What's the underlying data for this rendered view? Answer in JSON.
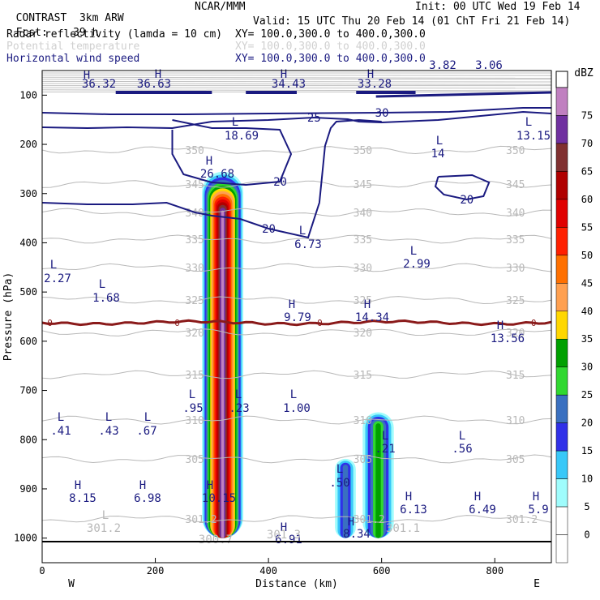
{
  "header": {
    "model": "CONTRAST",
    "model_res": "3km ARW",
    "org": "NCAR/MMM",
    "init": "Init: 00 UTC Wed 19 Feb 14",
    "fcst_label": "Fcst:",
    "fcst_value": "39 h",
    "valid": "Valid: 15 UTC Thu 20 Feb 14 (01 ChT Fri 21 Feb 14)",
    "fields": [
      {
        "name": "Radar reflectivity (lamda = 10 cm)",
        "xy": "XY= 100.0,300.0 to 400.0,300.0",
        "color": "#000000"
      },
      {
        "name": "Potential temperature",
        "xy": "XY= 100.0,300.0 to 400.0,300.0",
        "color": "#d0d0d0"
      },
      {
        "name": "Horizontal wind speed",
        "xy": "XY= 100.0,300.0 to 400.0,300.0",
        "color": "#1a1a80"
      }
    ]
  },
  "chart_data": {
    "type": "cross-section",
    "xlabel": "Distance (km)",
    "ylabel": "Pressure (hPa)",
    "xlim": [
      0,
      900
    ],
    "ylim": [
      1050,
      50
    ],
    "xticks": [
      0,
      200,
      400,
      600,
      800
    ],
    "yticks": [
      100,
      200,
      300,
      400,
      500,
      600,
      700,
      800,
      900,
      1000
    ],
    "x_end_labels": {
      "left": "W",
      "right": "E"
    },
    "colorbar": {
      "unit": "dBZ",
      "levels": [
        0,
        5,
        10,
        15,
        20,
        25,
        30,
        35,
        40,
        45,
        50,
        55,
        60,
        65,
        70,
        75
      ],
      "colors": [
        "#ffffff",
        "#9ffcfc",
        "#38c8f8",
        "#3030e8",
        "#3a70c0",
        "#30d830",
        "#00a000",
        "#ffd700",
        "#ffa050",
        "#ff7000",
        "#ff2000",
        "#e00000",
        "#b00000",
        "#803030",
        "#7030a0",
        "#c080c0"
      ]
    },
    "wind_contours": [
      {
        "value": 30,
        "pts": [
          [
            0,
            139
          ],
          [
            120,
            141
          ],
          [
            250,
            141
          ],
          [
            400,
            140
          ],
          [
            600,
            139
          ],
          [
            720,
            138
          ],
          [
            850,
            133
          ],
          [
            900,
            133
          ]
        ]
      },
      {
        "value": 25,
        "pts": [
          [
            0,
            157
          ],
          [
            80,
            158
          ],
          [
            150,
            157
          ],
          [
            230,
            158
          ],
          [
            300,
            150
          ],
          [
            400,
            148
          ],
          [
            480,
            145
          ],
          [
            540,
            147
          ],
          [
            560,
            150
          ],
          [
            600,
            151
          ],
          [
            700,
            148
          ],
          [
            850,
            138
          ],
          [
            900,
            140
          ]
        ]
      },
      {
        "value": 20,
        "pts": [
          [
            0,
            250
          ],
          [
            80,
            252
          ],
          [
            160,
            252
          ],
          [
            220,
            250
          ],
          [
            270,
            262
          ],
          [
            300,
            266
          ],
          [
            350,
            270
          ],
          [
            400,
            282
          ],
          [
            470,
            293
          ],
          [
            490,
            250
          ],
          [
            500,
            180
          ],
          [
            510,
            158
          ],
          [
            520,
            150
          ],
          [
            560,
            148
          ],
          [
            600,
            150
          ]
        ]
      },
      {
        "value": 20,
        "pts": [
          [
            230,
            148
          ],
          [
            300,
            158
          ],
          [
            360,
            158
          ],
          [
            420,
            160
          ],
          [
            440,
            190
          ],
          [
            420,
            224
          ],
          [
            360,
            228
          ],
          [
            300,
            225
          ],
          [
            250,
            215
          ],
          [
            230,
            190
          ],
          [
            230,
            160
          ]
        ]
      },
      {
        "value": 20,
        "pts": [
          [
            700,
            218
          ],
          [
            760,
            216
          ],
          [
            790,
            225
          ],
          [
            780,
            242
          ],
          [
            750,
            246
          ],
          [
            710,
            240
          ],
          [
            695,
            230
          ],
          [
            700,
            218
          ]
        ]
      }
    ],
    "theta_contours": [
      {
        "value": 350,
        "y": 185
      },
      {
        "value": 345,
        "y": 227
      },
      {
        "value": 340,
        "y": 262
      },
      {
        "value": 335,
        "y": 295
      },
      {
        "value": 330,
        "y": 330
      },
      {
        "value": 325,
        "y": 370
      },
      {
        "value": 320,
        "y": 410
      },
      {
        "value": 315,
        "y": 462
      },
      {
        "value": 310,
        "y": 518
      },
      {
        "value": 305,
        "y": 566
      },
      {
        "value": 301.2,
        "y": 640
      }
    ],
    "zero_line": {
      "value": 0,
      "y": 398
    },
    "reflectivity_cells": [
      {
        "x": 319,
        "top": 250,
        "bottom": 1000,
        "max_dbz": 75
      },
      {
        "x": 536,
        "top": 835,
        "bottom": 1000,
        "max_dbz": 20
      },
      {
        "x": 594,
        "top": 740,
        "bottom": 1000,
        "max_dbz": 30
      }
    ],
    "annotations": [
      {
        "text": "H",
        "x": 107,
        "y": 97,
        "color": "navy"
      },
      {
        "text": "36.32",
        "x": 122,
        "y": 108,
        "color": "navy"
      },
      {
        "text": "H",
        "x": 195,
        "y": 96,
        "color": "navy"
      },
      {
        "text": "36.63",
        "x": 190,
        "y": 108,
        "color": "navy"
      },
      {
        "text": "H",
        "x": 350,
        "y": 96,
        "color": "navy"
      },
      {
        "text": "34.43",
        "x": 356,
        "y": 108,
        "color": "navy"
      },
      {
        "text": "H",
        "x": 457,
        "y": 96,
        "color": "navy"
      },
      {
        "text": "33.28",
        "x": 462,
        "y": 108,
        "color": "navy"
      },
      {
        "text": "3.82",
        "x": 546,
        "y": 85,
        "color": "navy"
      },
      {
        "text": "3.06",
        "x": 603,
        "y": 85,
        "color": "navy"
      },
      {
        "text": "L",
        "x": 290,
        "y": 155,
        "color": "navy"
      },
      {
        "text": "18.69",
        "x": 298,
        "y": 172,
        "color": "navy"
      },
      {
        "text": "L",
        "x": 542,
        "y": 178,
        "color": "navy"
      },
      {
        "text": "14",
        "x": 540,
        "y": 194,
        "color": "navy"
      },
      {
        "text": "L",
        "x": 652,
        "y": 155,
        "color": "navy"
      },
      {
        "text": "13.15",
        "x": 658,
        "y": 172,
        "color": "navy"
      },
      {
        "text": "H",
        "x": 258,
        "y": 203,
        "color": "navy"
      },
      {
        "text": "26.68",
        "x": 268,
        "y": 219,
        "color": "navy"
      },
      {
        "text": "L",
        "x": 373,
        "y": 289,
        "color": "navy"
      },
      {
        "text": "6.73",
        "x": 380,
        "y": 306,
        "color": "navy"
      },
      {
        "text": "L",
        "x": 510,
        "y": 314,
        "color": "navy"
      },
      {
        "text": "2.99",
        "x": 514,
        "y": 330,
        "color": "navy"
      },
      {
        "text": "L",
        "x": 66,
        "y": 331,
        "color": "navy"
      },
      {
        "text": "2.27",
        "x": 71,
        "y": 348,
        "color": "navy"
      },
      {
        "text": "L",
        "x": 126,
        "y": 355,
        "color": "navy"
      },
      {
        "text": "1.68",
        "x": 131,
        "y": 372,
        "color": "navy"
      },
      {
        "text": "H",
        "x": 360,
        "y": 380,
        "color": "navy"
      },
      {
        "text": "9.79",
        "x": 367,
        "y": 396,
        "color": "navy"
      },
      {
        "text": "H",
        "x": 453,
        "y": 380,
        "color": "navy"
      },
      {
        "text": "14.34",
        "x": 459,
        "y": 396,
        "color": "navy"
      },
      {
        "text": "H",
        "x": 617,
        "y": 406,
        "color": "navy"
      },
      {
        "text": "13.56",
        "x": 626,
        "y": 422,
        "color": "navy"
      },
      {
        "text": "L",
        "x": 237,
        "y": 491,
        "color": "navy"
      },
      {
        "text": ".95",
        "x": 238,
        "y": 508,
        "color": "navy"
      },
      {
        "text": "L",
        "x": 294,
        "y": 491,
        "color": "navy"
      },
      {
        "text": ".23",
        "x": 295,
        "y": 508,
        "color": "navy"
      },
      {
        "text": "L",
        "x": 362,
        "y": 491,
        "color": "navy"
      },
      {
        "text": "1.00",
        "x": 366,
        "y": 508,
        "color": "navy"
      },
      {
        "text": "L",
        "x": 75,
        "y": 519,
        "color": "navy"
      },
      {
        "text": ".41",
        "x": 75,
        "y": 536,
        "color": "navy"
      },
      {
        "text": "L",
        "x": 134,
        "y": 519,
        "color": "navy"
      },
      {
        "text": ".43",
        "x": 134,
        "y": 536,
        "color": "navy"
      },
      {
        "text": "L",
        "x": 182,
        "y": 519,
        "color": "navy"
      },
      {
        "text": ".67",
        "x": 181,
        "y": 536,
        "color": "navy"
      },
      {
        "text": "L",
        "x": 475,
        "y": 542,
        "color": "navy"
      },
      {
        "text": ".21",
        "x": 475,
        "y": 558,
        "color": "navy"
      },
      {
        "text": "L",
        "x": 570,
        "y": 542,
        "color": "navy"
      },
      {
        "text": ".56",
        "x": 570,
        "y": 558,
        "color": "navy"
      },
      {
        "text": "L",
        "x": 419,
        "y": 583,
        "color": "navy"
      },
      {
        "text": ".50",
        "x": 419,
        "y": 600,
        "color": "navy"
      },
      {
        "text": "H",
        "x": 96,
        "y": 603,
        "color": "navy"
      },
      {
        "text": "8.15",
        "x": 102,
        "y": 619,
        "color": "navy"
      },
      {
        "text": "H",
        "x": 176,
        "y": 603,
        "color": "navy"
      },
      {
        "text": "6.98",
        "x": 182,
        "y": 619,
        "color": "navy"
      },
      {
        "text": "H",
        "x": 259,
        "y": 603,
        "color": "navy"
      },
      {
        "text": "10.15",
        "x": 270,
        "y": 619,
        "color": "navy"
      },
      {
        "text": "H",
        "x": 504,
        "y": 617,
        "color": "navy"
      },
      {
        "text": "6.13",
        "x": 510,
        "y": 633,
        "color": "navy"
      },
      {
        "text": "H",
        "x": 589,
        "y": 617,
        "color": "navy"
      },
      {
        "text": "6.49",
        "x": 595,
        "y": 633,
        "color": "navy"
      },
      {
        "text": "H",
        "x": 661,
        "y": 617,
        "color": "navy"
      },
      {
        "text": "5.9",
        "x": 664,
        "y": 633,
        "color": "navy"
      },
      {
        "text": "H",
        "x": 433,
        "y": 648,
        "color": "navy"
      },
      {
        "text": "8.34",
        "x": 440,
        "y": 663,
        "color": "navy"
      },
      {
        "text": "H",
        "x": 350,
        "y": 655,
        "color": "navy"
      },
      {
        "text": "6.91",
        "x": 356,
        "y": 670,
        "color": "navy"
      },
      {
        "text": "L",
        "x": 130,
        "y": 640,
        "color": "grey"
      },
      {
        "text": "301.2",
        "x": 128,
        "y": 656,
        "color": "grey"
      },
      {
        "text": "301.1",
        "x": 497,
        "y": 656,
        "color": "grey"
      },
      {
        "text": "300.7",
        "x": 266,
        "y": 670,
        "color": "grey"
      },
      {
        "text": "301.3",
        "x": 350,
        "y": 664,
        "color": "grey"
      }
    ]
  }
}
